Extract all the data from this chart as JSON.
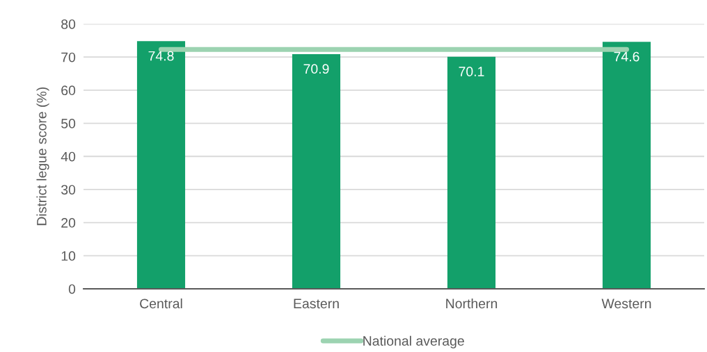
{
  "chart_data": {
    "type": "bar",
    "ylabel": "District legue score (%)",
    "categories": [
      "Central",
      "Eastern",
      "Northern",
      "Western"
    ],
    "series": [
      {
        "color": "#13a06a",
        "values": [
          74.8,
          70.9,
          70.1,
          74.6
        ],
        "value_labels": [
          "74.8",
          "70.9",
          "70.1",
          "74.6"
        ]
      },
      {
        "type": "line",
        "name": "National average",
        "color": "#9cd3b1",
        "values": [
          72.3,
          72.3,
          72.3,
          72.3
        ]
      }
    ],
    "ylim": [
      0,
      80
    ],
    "yticks": [
      0,
      10,
      20,
      30,
      40,
      50,
      60,
      70,
      80
    ],
    "grid": "y",
    "legend": "bottom",
    "marker": "none",
    "line_style": "solid"
  }
}
